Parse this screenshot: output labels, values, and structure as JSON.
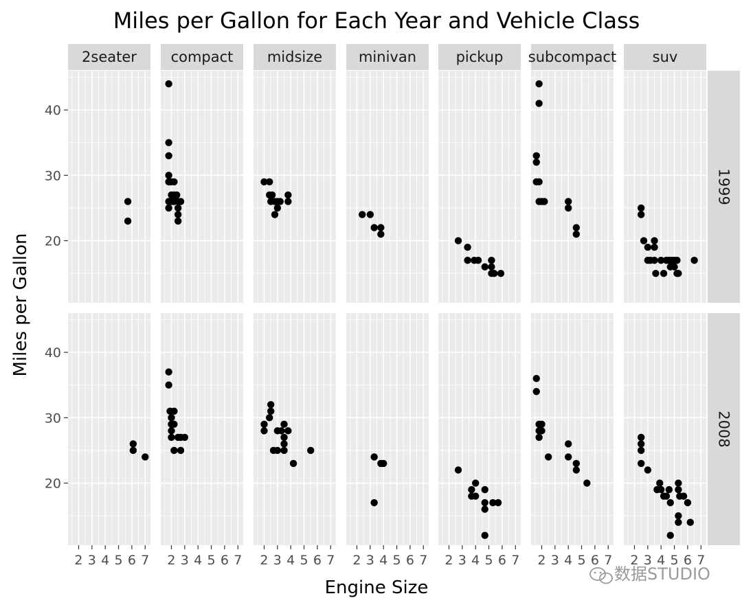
{
  "chart_data": {
    "type": "scatter",
    "title": "Miles per Gallon for Each Year and Vehicle Class",
    "xlabel": "Engine Size",
    "ylabel": "Miles per Gallon",
    "xlim": [
      1.2,
      7.4
    ],
    "ylim": [
      10.5,
      46.0
    ],
    "x_ticks": [
      2,
      3,
      4,
      5,
      6,
      7
    ],
    "y_ticks": [
      20,
      30,
      40
    ],
    "grid": true,
    "columns": [
      "2seater",
      "compact",
      "midsize",
      "minivan",
      "pickup",
      "subcompact",
      "suv"
    ],
    "rows": [
      "1999",
      "2008"
    ],
    "panels": [
      {
        "row": "1999",
        "column": "2seater",
        "points": [
          [
            5.7,
            26
          ],
          [
            5.7,
            23
          ]
        ]
      },
      {
        "row": "1999",
        "column": "compact",
        "points": [
          [
            1.8,
            44
          ],
          [
            1.8,
            35
          ],
          [
            1.8,
            33
          ],
          [
            1.8,
            30
          ],
          [
            1.8,
            29
          ],
          [
            1.9,
            29
          ],
          [
            2.0,
            29
          ],
          [
            2.2,
            29
          ],
          [
            1.8,
            26
          ],
          [
            1.8,
            25
          ],
          [
            2.0,
            26
          ],
          [
            2.2,
            26
          ],
          [
            2.0,
            27
          ],
          [
            2.2,
            27
          ],
          [
            2.4,
            27
          ],
          [
            2.5,
            26
          ],
          [
            2.7,
            26
          ],
          [
            2.5,
            25
          ],
          [
            2.5,
            24
          ],
          [
            2.5,
            23
          ]
        ]
      },
      {
        "row": "1999",
        "column": "midsize",
        "points": [
          [
            2.0,
            29
          ],
          [
            2.4,
            29
          ],
          [
            2.4,
            27
          ],
          [
            2.6,
            27
          ],
          [
            2.5,
            26
          ],
          [
            2.8,
            26
          ],
          [
            3.0,
            26
          ],
          [
            3.2,
            26
          ],
          [
            3.0,
            25
          ],
          [
            2.8,
            24
          ],
          [
            3.8,
            27
          ],
          [
            3.8,
            26
          ]
        ]
      },
      {
        "row": "1999",
        "column": "minivan",
        "points": [
          [
            2.4,
            24
          ],
          [
            3.0,
            24
          ],
          [
            3.3,
            22
          ],
          [
            3.8,
            22
          ],
          [
            3.8,
            21
          ]
        ]
      },
      {
        "row": "1999",
        "column": "pickup",
        "points": [
          [
            2.7,
            20
          ],
          [
            3.4,
            19
          ],
          [
            3.4,
            17
          ],
          [
            3.9,
            17
          ],
          [
            4.2,
            17
          ],
          [
            4.7,
            16
          ],
          [
            5.2,
            17
          ],
          [
            5.2,
            16
          ],
          [
            5.2,
            15
          ],
          [
            5.4,
            15
          ],
          [
            5.9,
            15
          ]
        ]
      },
      {
        "row": "1999",
        "column": "subcompact",
        "points": [
          [
            1.6,
            33
          ],
          [
            1.6,
            32
          ],
          [
            1.8,
            44
          ],
          [
            1.8,
            41
          ],
          [
            1.6,
            29
          ],
          [
            1.8,
            29
          ],
          [
            1.8,
            26
          ],
          [
            2.0,
            26
          ],
          [
            2.2,
            26
          ],
          [
            4.0,
            26
          ],
          [
            4.0,
            25
          ],
          [
            4.6,
            22
          ],
          [
            4.6,
            21
          ]
        ]
      },
      {
        "row": "1999",
        "column": "suv",
        "points": [
          [
            2.5,
            25
          ],
          [
            2.5,
            24
          ],
          [
            2.7,
            20
          ],
          [
            3.0,
            19
          ],
          [
            3.0,
            17
          ],
          [
            3.2,
            17
          ],
          [
            3.5,
            17
          ],
          [
            3.5,
            19
          ],
          [
            3.5,
            20
          ],
          [
            3.6,
            15
          ],
          [
            4.0,
            17
          ],
          [
            4.2,
            15
          ],
          [
            4.4,
            17
          ],
          [
            4.6,
            17
          ],
          [
            4.7,
            16
          ],
          [
            4.8,
            17
          ],
          [
            5.0,
            17
          ],
          [
            5.0,
            16
          ],
          [
            5.2,
            15
          ],
          [
            5.3,
            15
          ],
          [
            5.2,
            17
          ],
          [
            6.5,
            17
          ]
        ]
      },
      {
        "row": "2008",
        "column": "2seater",
        "points": [
          [
            6.1,
            26
          ],
          [
            6.1,
            25
          ],
          [
            7.0,
            24
          ]
        ]
      },
      {
        "row": "2008",
        "column": "compact",
        "points": [
          [
            1.8,
            37
          ],
          [
            1.8,
            35
          ],
          [
            1.9,
            31
          ],
          [
            2.2,
            31
          ],
          [
            2.0,
            30
          ],
          [
            2.0,
            29
          ],
          [
            2.2,
            29
          ],
          [
            2.0,
            28
          ],
          [
            2.0,
            27
          ],
          [
            2.5,
            27
          ],
          [
            2.7,
            27
          ],
          [
            3.0,
            27
          ],
          [
            2.2,
            25
          ],
          [
            2.7,
            25
          ]
        ]
      },
      {
        "row": "2008",
        "column": "midsize",
        "points": [
          [
            2.0,
            29
          ],
          [
            2.0,
            28
          ],
          [
            2.4,
            30
          ],
          [
            2.5,
            31
          ],
          [
            2.5,
            32
          ],
          [
            2.7,
            25
          ],
          [
            3.0,
            25
          ],
          [
            3.0,
            28
          ],
          [
            3.3,
            28
          ],
          [
            3.5,
            29
          ],
          [
            3.5,
            27
          ],
          [
            3.5,
            26
          ],
          [
            3.5,
            25
          ],
          [
            3.8,
            28
          ],
          [
            4.2,
            23
          ],
          [
            5.5,
            25
          ]
        ]
      },
      {
        "row": "2008",
        "column": "minivan",
        "points": [
          [
            3.3,
            24
          ],
          [
            3.3,
            17
          ],
          [
            3.8,
            23
          ],
          [
            4.0,
            23
          ]
        ]
      },
      {
        "row": "2008",
        "column": "pickup",
        "points": [
          [
            2.7,
            22
          ],
          [
            3.7,
            19
          ],
          [
            3.7,
            18
          ],
          [
            4.0,
            18
          ],
          [
            4.0,
            20
          ],
          [
            4.7,
            19
          ],
          [
            4.7,
            17
          ],
          [
            4.7,
            16
          ],
          [
            4.7,
            12
          ],
          [
            5.3,
            17
          ],
          [
            5.7,
            17
          ]
        ]
      },
      {
        "row": "2008",
        "column": "subcompact",
        "points": [
          [
            1.6,
            36
          ],
          [
            1.6,
            34
          ],
          [
            1.8,
            29
          ],
          [
            1.8,
            28
          ],
          [
            1.8,
            27
          ],
          [
            2.0,
            29
          ],
          [
            2.0,
            28
          ],
          [
            2.5,
            24
          ],
          [
            4.0,
            26
          ],
          [
            4.0,
            24
          ],
          [
            4.6,
            23
          ],
          [
            4.6,
            22
          ],
          [
            5.4,
            20
          ]
        ]
      },
      {
        "row": "2008",
        "column": "suv",
        "points": [
          [
            2.5,
            27
          ],
          [
            2.5,
            26
          ],
          [
            2.5,
            25
          ],
          [
            2.5,
            23
          ],
          [
            3.0,
            22
          ],
          [
            3.7,
            19
          ],
          [
            3.9,
            20
          ],
          [
            4.0,
            19
          ],
          [
            4.2,
            18
          ],
          [
            4.4,
            18
          ],
          [
            4.6,
            19
          ],
          [
            4.7,
            17
          ],
          [
            4.7,
            12
          ],
          [
            5.3,
            20
          ],
          [
            5.3,
            19
          ],
          [
            5.3,
            15
          ],
          [
            5.3,
            14
          ],
          [
            5.4,
            18
          ],
          [
            5.7,
            18
          ],
          [
            6.0,
            17
          ],
          [
            6.2,
            14
          ]
        ]
      }
    ]
  },
  "watermark": {
    "text": "数据STUDIO",
    "icon": "wechat-icon"
  }
}
